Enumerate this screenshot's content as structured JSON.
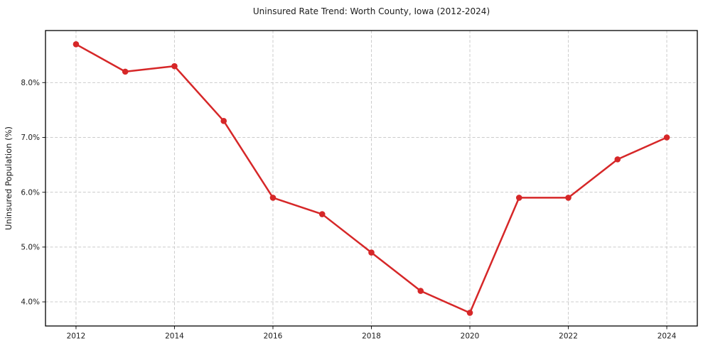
{
  "chart_data": {
    "type": "line",
    "title": "Uninsured Rate Trend: Worth County, Iowa (2012-2024)",
    "xlabel": "",
    "ylabel": "Uninsured Population (%)",
    "x": [
      2012,
      2013,
      2014,
      2015,
      2016,
      2017,
      2018,
      2019,
      2020,
      2021,
      2022,
      2023,
      2024
    ],
    "values": [
      8.7,
      8.2,
      8.3,
      7.3,
      5.9,
      5.6,
      4.9,
      4.2,
      3.8,
      5.9,
      5.9,
      6.6,
      7.0
    ],
    "series_name": "Uninsured rate",
    "xticks": [
      {
        "value": 2012,
        "label": "2012"
      },
      {
        "value": 2014,
        "label": "2014"
      },
      {
        "value": 2016,
        "label": "2016"
      },
      {
        "value": 2018,
        "label": "2018"
      },
      {
        "value": 2020,
        "label": "2020"
      },
      {
        "value": 2022,
        "label": "2022"
      },
      {
        "value": 2024,
        "label": "2024"
      }
    ],
    "yticks": [
      {
        "value": 4.0,
        "label": "4.0%"
      },
      {
        "value": 5.0,
        "label": "5.0%"
      },
      {
        "value": 6.0,
        "label": "6.0%"
      },
      {
        "value": 7.0,
        "label": "7.0%"
      },
      {
        "value": 8.0,
        "label": "8.0%"
      }
    ],
    "xlim": [
      2011.38,
      2024.62
    ],
    "ylim": [
      3.56,
      8.95
    ],
    "grid": true,
    "grid_style": "dashed",
    "legend": false,
    "marker": "circle",
    "colors": {
      "line": "#d62728",
      "marker": "#d62728",
      "grid": "#cccccc",
      "spine": "#000000",
      "text": "#1a1a1a",
      "background": "#ffffff"
    }
  }
}
